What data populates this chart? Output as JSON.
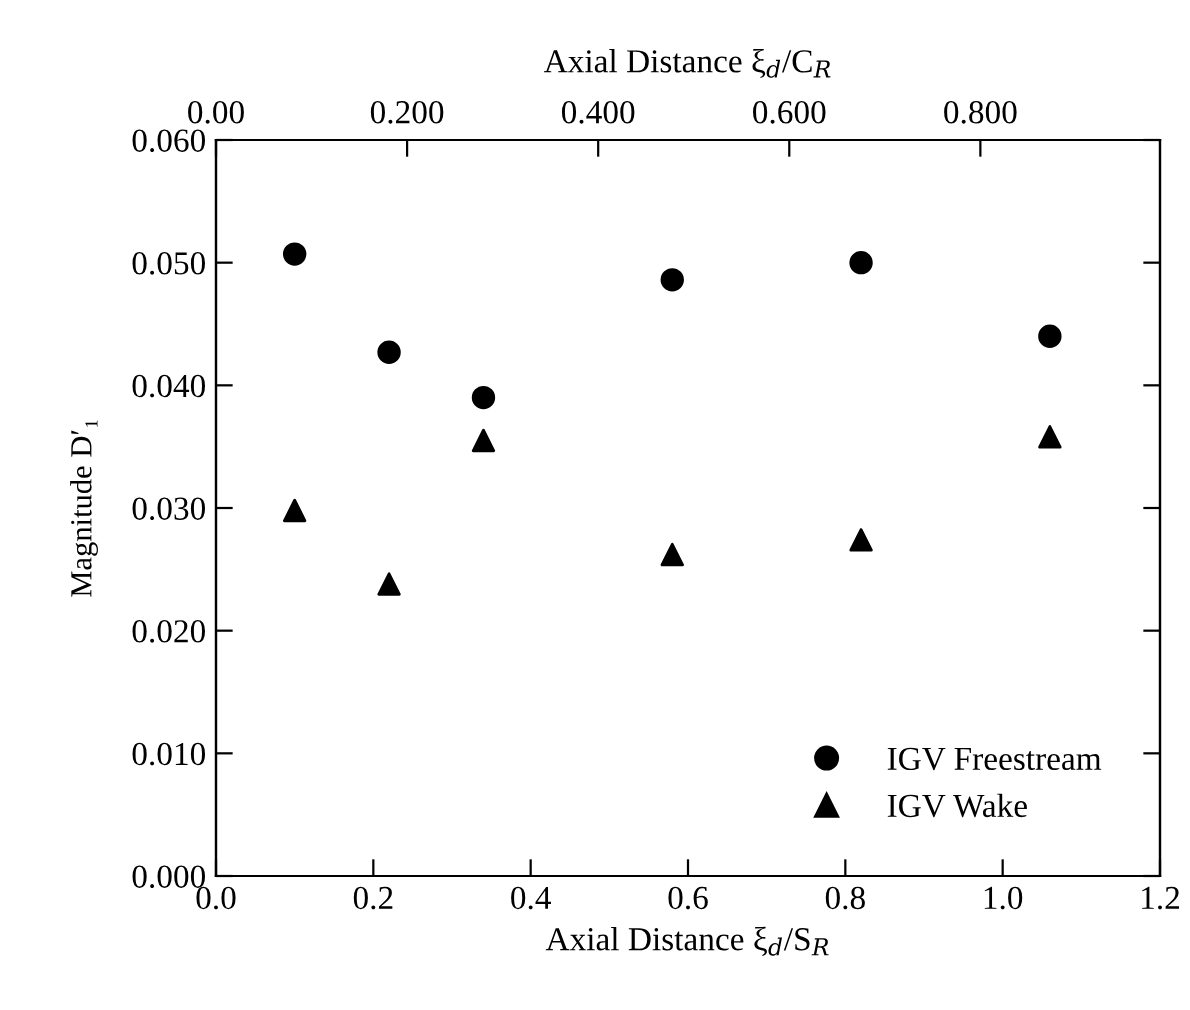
{
  "chart_data": {
    "type": "scatter",
    "xlabel": "Axial Distance ξ$_{d}$/S$_{R}$",
    "ylabel": "Magnitude D′₁",
    "x2label": "Axial Distance ξ$_{d}$/C$_{R}$",
    "x": [
      0.1,
      0.22,
      0.34,
      0.58,
      0.82,
      1.06
    ],
    "series": [
      {
        "name": "IGV Freestream",
        "color": "#000000",
        "marker": "circle",
        "values": [
          0.0507,
          0.0427,
          0.039,
          0.0486,
          0.05,
          0.044
        ]
      },
      {
        "name": "IGV Wake",
        "color": "#000000",
        "marker": "triangle",
        "values": [
          0.0298,
          0.0238,
          0.0355,
          0.0262,
          0.0274,
          0.0358
        ]
      }
    ],
    "xlim": [
      0,
      1.2
    ],
    "xticks": [
      {
        "value": 0,
        "label": "0.0"
      },
      {
        "value": 0.2,
        "label": "0.2"
      },
      {
        "value": 0.4,
        "label": "0.4"
      },
      {
        "value": 0.6,
        "label": "0.6"
      },
      {
        "value": 0.8,
        "label": "0.8"
      },
      {
        "value": 1.0,
        "label": "1.0"
      },
      {
        "value": 1.2,
        "label": "1.2"
      }
    ],
    "x2lim": [
      0,
      0.988
    ],
    "x2ticks": [
      {
        "value": 0,
        "label": "0.00"
      },
      {
        "value": 0.2,
        "label": "0.200"
      },
      {
        "value": 0.4,
        "label": "0.400"
      },
      {
        "value": 0.6,
        "label": "0.600"
      },
      {
        "value": 0.8,
        "label": "0.800"
      }
    ],
    "ylim": [
      0,
      0.06
    ],
    "yticks": [
      {
        "value": 0,
        "label": "0.000"
      },
      {
        "value": 0.01,
        "label": "0.010"
      },
      {
        "value": 0.02,
        "label": "0.020"
      },
      {
        "value": 0.03,
        "label": "0.030"
      },
      {
        "value": 0.04,
        "label": "0.040"
      },
      {
        "value": 0.05,
        "label": "0.050"
      },
      {
        "value": 0.06,
        "label": "0.060"
      }
    ],
    "grid": false,
    "legend": "bottom right"
  }
}
